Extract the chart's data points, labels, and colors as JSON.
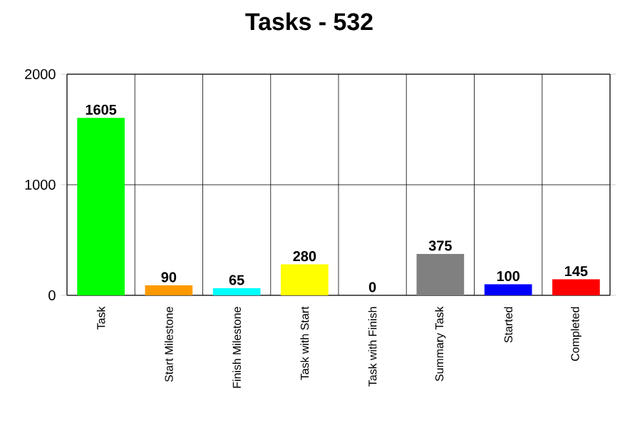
{
  "chart_data": {
    "type": "bar",
    "title": "Tasks - 532",
    "categories": [
      "Task",
      "Start Milestone",
      "Finish Milestone",
      "Task with Start",
      "Task with Finish",
      "Summary Task",
      "Started",
      "Completed"
    ],
    "values": [
      1605,
      90,
      65,
      280,
      0,
      375,
      100,
      145
    ],
    "colors": [
      "#00ff00",
      "#ff9900",
      "#00ffff",
      "#ffff00",
      "#c0c0c0",
      "#808080",
      "#0000ff",
      "#ff0000"
    ],
    "ylim": [
      0,
      2000
    ],
    "yticks": [
      0,
      1000,
      2000
    ],
    "grid": true,
    "data_labels": true
  }
}
